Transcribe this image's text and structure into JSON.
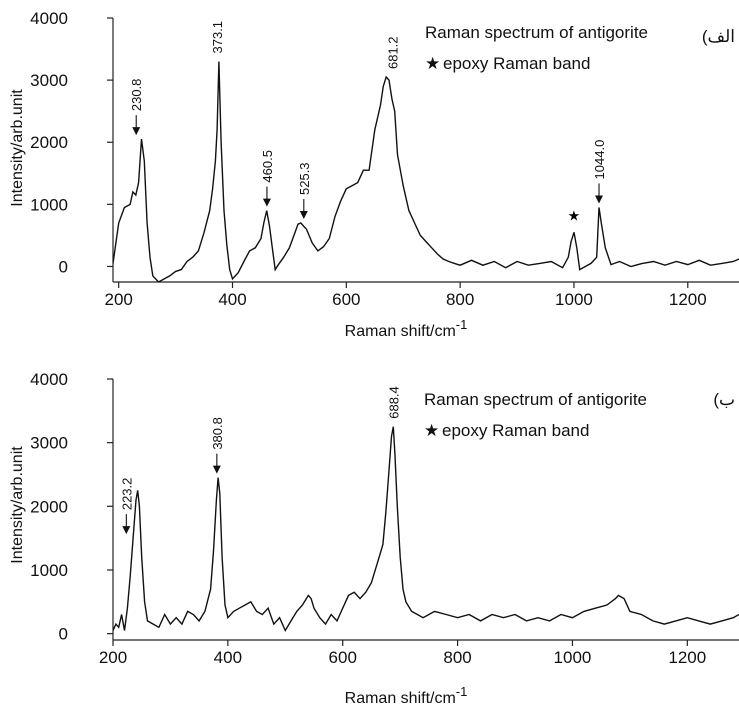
{
  "chart_data": [
    {
      "type": "line",
      "panel_label": "(الف",
      "title": "Raman spectrum of antigorite",
      "legend": {
        "marker": "★",
        "text": "epoxy Raman band",
        "placement": "top-right"
      },
      "xlabel": "Raman shift/cm",
      "xlabel_sup": "-1",
      "ylabel": "Intensity/arb.unit",
      "xlim": [
        190,
        1290
      ],
      "ylim": [
        -250,
        4000
      ],
      "xticks": [
        200,
        400,
        600,
        800,
        1000,
        1200
      ],
      "yticks": [
        0,
        1000,
        2000,
        3000,
        4000
      ],
      "grid": false,
      "series": [
        {
          "x": [
            190,
            200,
            210,
            220,
            225,
            230,
            235,
            240,
            245,
            250,
            255,
            260,
            270,
            280,
            290,
            300,
            310,
            320,
            330,
            340,
            350,
            360,
            365,
            370,
            373,
            376,
            380,
            385,
            390,
            395,
            400,
            410,
            420,
            430,
            440,
            450,
            455,
            460,
            465,
            470,
            475,
            480,
            490,
            500,
            510,
            515,
            520,
            525,
            530,
            540,
            550,
            560,
            570,
            580,
            590,
            600,
            610,
            620,
            630,
            640,
            650,
            660,
            665,
            670,
            675,
            680,
            685,
            690,
            700,
            710,
            720,
            730,
            740,
            750,
            760,
            770,
            780,
            790,
            800,
            820,
            840,
            860,
            880,
            900,
            920,
            940,
            960,
            980,
            990,
            995,
            1000,
            1005,
            1010,
            1020,
            1030,
            1040,
            1044,
            1048,
            1055,
            1065,
            1080,
            1100,
            1120,
            1140,
            1160,
            1180,
            1200,
            1220,
            1240,
            1260,
            1280,
            1290
          ],
          "y": [
            50,
            700,
            950,
            1000,
            1200,
            1150,
            1350,
            2050,
            1700,
            700,
            150,
            -150,
            -250,
            -200,
            -150,
            -80,
            -50,
            80,
            150,
            250,
            550,
            900,
            1250,
            1700,
            2200,
            3300,
            2000,
            900,
            350,
            -50,
            -200,
            -100,
            80,
            250,
            300,
            450,
            700,
            900,
            650,
            300,
            -50,
            20,
            150,
            300,
            550,
            680,
            700,
            650,
            600,
            380,
            250,
            320,
            450,
            800,
            1050,
            1250,
            1300,
            1350,
            1550,
            1550,
            2200,
            2600,
            2900,
            3050,
            3000,
            2700,
            2500,
            1800,
            1300,
            900,
            700,
            500,
            400,
            300,
            200,
            120,
            80,
            50,
            20,
            100,
            20,
            80,
            -20,
            80,
            20,
            50,
            80,
            -20,
            150,
            400,
            550,
            300,
            -50,
            0,
            50,
            150,
            950,
            700,
            300,
            30,
            80,
            0,
            50,
            80,
            20,
            80,
            30,
            100,
            20,
            50,
            80,
            120
          ]
        }
      ],
      "peaks": [
        {
          "x": 230.8,
          "label": "230.8"
        },
        {
          "x": 373.1,
          "label": "373.1"
        },
        {
          "x": 460.5,
          "label": "460.5"
        },
        {
          "x": 525.3,
          "label": "525.3"
        },
        {
          "x": 681.2,
          "label": "681.2"
        },
        {
          "x": 1044.0,
          "label": "1044.0"
        }
      ],
      "epoxy_marks": [
        {
          "x": 1000
        }
      ]
    },
    {
      "type": "line",
      "panel_label": "(ب",
      "title": "Raman spectrum of antigorite",
      "legend": {
        "marker": "★",
        "text": "epoxy Raman band",
        "placement": "top-right"
      },
      "xlabel": "Raman shift/cm",
      "xlabel_sup": "-1",
      "ylabel": "Intensity/arb.unit",
      "xlim": [
        200,
        1290
      ],
      "ylim": [
        -100,
        4000
      ],
      "xticks": [
        200,
        400,
        600,
        800,
        1000,
        1200
      ],
      "yticks": [
        0,
        1000,
        2000,
        3000,
        4000
      ],
      "grid": false,
      "series": [
        {
          "x": [
            200,
            205,
            210,
            215,
            220,
            225,
            230,
            235,
            240,
            243,
            246,
            250,
            255,
            260,
            270,
            280,
            290,
            300,
            310,
            320,
            330,
            340,
            350,
            360,
            370,
            375,
            380,
            383,
            386,
            390,
            395,
            400,
            410,
            420,
            430,
            440,
            450,
            460,
            470,
            480,
            490,
            500,
            510,
            520,
            530,
            540,
            545,
            550,
            560,
            570,
            580,
            590,
            600,
            610,
            620,
            630,
            640,
            650,
            660,
            670,
            675,
            680,
            685,
            688,
            691,
            695,
            700,
            705,
            710,
            720,
            730,
            740,
            750,
            760,
            780,
            800,
            820,
            840,
            860,
            880,
            900,
            920,
            940,
            960,
            980,
            1000,
            1020,
            1040,
            1060,
            1075,
            1080,
            1090,
            1100,
            1120,
            1140,
            1160,
            1180,
            1200,
            1220,
            1240,
            1260,
            1280,
            1290
          ],
          "y": [
            50,
            150,
            100,
            300,
            50,
            400,
            900,
            1500,
            2100,
            2250,
            2000,
            1200,
            500,
            200,
            150,
            100,
            300,
            150,
            250,
            150,
            350,
            300,
            200,
            350,
            700,
            1300,
            2100,
            2450,
            2200,
            1200,
            450,
            250,
            350,
            400,
            450,
            500,
            350,
            300,
            400,
            150,
            250,
            50,
            200,
            350,
            450,
            600,
            550,
            400,
            250,
            150,
            300,
            200,
            400,
            600,
            650,
            550,
            650,
            800,
            1100,
            1400,
            1900,
            2500,
            3100,
            3250,
            2800,
            2000,
            1200,
            700,
            500,
            350,
            300,
            250,
            300,
            350,
            300,
            250,
            300,
            200,
            300,
            250,
            300,
            200,
            250,
            200,
            300,
            250,
            350,
            400,
            450,
            550,
            600,
            550,
            350,
            300,
            200,
            150,
            200,
            250,
            200,
            150,
            200,
            250,
            300
          ]
        }
      ],
      "peaks": [
        {
          "x": 223.2,
          "label": "223.2"
        },
        {
          "x": 380.8,
          "label": "380.8"
        },
        {
          "x": 688.4,
          "label": "688.4"
        }
      ],
      "epoxy_marks": []
    }
  ]
}
